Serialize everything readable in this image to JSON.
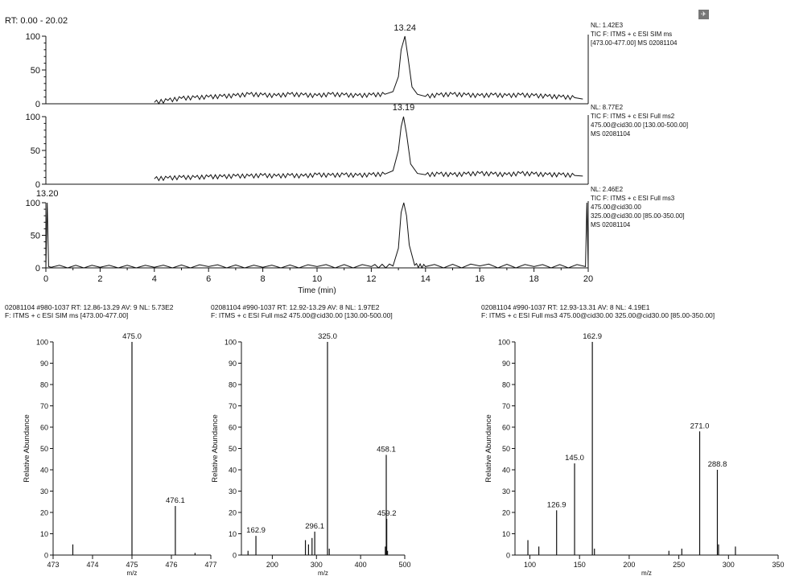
{
  "header": {
    "rt_range": "RT: 0.00 - 20.02"
  },
  "icon_name": "chromatogram-flag-icon",
  "chart_data": [
    {
      "type": "line",
      "panel": "chromatogram-1",
      "peak_label": "13.24",
      "info": [
        "NL: 1.42E3",
        "TIC F: ITMS + c ESI SIM ms",
        "[473.00-477.00]  MS 02081104"
      ],
      "x": [
        4.0,
        4.5,
        5.0,
        5.5,
        6.0,
        6.5,
        7.0,
        7.5,
        8.0,
        8.5,
        9.0,
        9.5,
        10.0,
        10.5,
        11.0,
        11.5,
        12.0,
        12.5,
        12.8,
        13.0,
        13.1,
        13.24,
        13.35,
        13.5,
        13.7,
        14.0,
        14.5,
        15.0,
        15.5,
        16.0,
        16.5,
        17.0,
        17.5,
        18.0,
        18.5,
        19.0,
        19.5,
        19.8
      ],
      "y": [
        2,
        5,
        8,
        9,
        10,
        11,
        12,
        14,
        13,
        12,
        14,
        13,
        12,
        14,
        13,
        12,
        13,
        14,
        18,
        40,
        80,
        100,
        70,
        25,
        14,
        11,
        13,
        14,
        13,
        12,
        13,
        12,
        13,
        12,
        11,
        10,
        9,
        7
      ],
      "xlim": [
        0,
        20
      ],
      "ylim": [
        0,
        100
      ],
      "yticks": [
        0,
        50,
        100
      ],
      "show_x_ticks": false
    },
    {
      "type": "line",
      "panel": "chromatogram-2",
      "peak_label": "13.19",
      "info": [
        "NL: 8.77E2",
        "TIC F: ITMS + c ESI Full ms2",
        "475.00@cid30.00 [130.00-500.00]",
        "MS 02081104"
      ],
      "x": [
        4.0,
        4.5,
        5.0,
        5.5,
        6.0,
        6.5,
        7.0,
        7.5,
        8.0,
        8.5,
        9.0,
        9.5,
        10.0,
        10.5,
        11.0,
        11.5,
        12.0,
        12.5,
        12.8,
        13.0,
        13.1,
        13.19,
        13.3,
        13.45,
        13.7,
        14.0,
        14.5,
        15.0,
        15.5,
        16.0,
        16.5,
        17.0,
        17.5,
        18.0,
        18.5,
        19.0,
        19.5,
        19.8
      ],
      "y": [
        8,
        9,
        10,
        10,
        11,
        11,
        12,
        12,
        13,
        12,
        13,
        12,
        14,
        13,
        14,
        13,
        14,
        15,
        20,
        50,
        85,
        100,
        75,
        30,
        16,
        14,
        15,
        14,
        15,
        16,
        15,
        14,
        16,
        15,
        14,
        14,
        13,
        12
      ],
      "xlim": [
        0,
        20
      ],
      "ylim": [
        0,
        100
      ],
      "yticks": [
        0,
        50,
        100
      ],
      "show_x_ticks": false
    },
    {
      "type": "line",
      "panel": "chromatogram-3",
      "peak_label": "13.20",
      "info": [
        "NL: 2.46E2",
        "TIC F: ITMS + c ESI Full ms3",
        "475.00@cid30.00",
        "325.00@cid30.00 [85.00-350.00]",
        "MS 02081104"
      ],
      "x": [
        0.0,
        0.05,
        0.1,
        0.2,
        2.0,
        4.0,
        6.0,
        8.0,
        10.0,
        12.0,
        12.8,
        13.0,
        13.1,
        13.2,
        13.3,
        13.4,
        13.6,
        14.0,
        16.0,
        18.0,
        19.9,
        19.95,
        20.0
      ],
      "y": [
        0,
        100,
        2,
        1,
        1,
        1,
        2,
        1,
        2,
        2,
        3,
        30,
        85,
        100,
        80,
        35,
        4,
        2,
        3,
        2,
        2,
        100,
        0
      ],
      "xlim": [
        0,
        20
      ],
      "ylim": [
        0,
        100
      ],
      "yticks": [
        0,
        50,
        100
      ],
      "xticks": [
        0,
        2,
        4,
        6,
        8,
        10,
        12,
        14,
        16,
        18,
        20
      ],
      "xlabel": "Time (min)",
      "show_x_ticks": true
    },
    {
      "type": "bar",
      "panel": "spectrum-1",
      "header": [
        "02081104 #980-1037   RT: 12.86-13.29   AV: 9   NL: 5.73E2",
        "F: ITMS + c ESI SIM ms [473.00-477.00]"
      ],
      "xlabel": "m/z",
      "ylabel": "Relative Abundance",
      "xlim": [
        473,
        477
      ],
      "ylim": [
        0,
        100
      ],
      "xticks": [
        473,
        474,
        475,
        476,
        477
      ],
      "yticks": [
        0,
        10,
        20,
        30,
        40,
        50,
        60,
        70,
        80,
        90,
        100
      ],
      "x": [
        473.5,
        475.0,
        476.1,
        476.6
      ],
      "values": [
        5,
        100,
        23,
        1
      ],
      "labels": [
        "",
        "475.0",
        "476.1",
        ""
      ]
    },
    {
      "type": "bar",
      "panel": "spectrum-2",
      "header": [
        "02081104 #990-1037   RT: 12.92-13.29   AV: 8   NL: 1.97E2",
        "F: ITMS + c ESI Full ms2 475.00@cid30.00 [130.00-500.00]"
      ],
      "xlabel": "m/z",
      "ylabel": "Relative Abundance",
      "xlim": [
        130,
        500
      ],
      "ylim": [
        0,
        100
      ],
      "xticks": [
        200,
        300,
        400,
        500
      ],
      "yticks": [
        0,
        10,
        20,
        30,
        40,
        50,
        60,
        70,
        80,
        90,
        100
      ],
      "x": [
        145,
        162.9,
        275,
        282,
        290,
        296.1,
        325.0,
        329,
        456,
        458.1,
        459.2,
        461
      ],
      "values": [
        2,
        9,
        7,
        5,
        8,
        11,
        100,
        3,
        4,
        47,
        17,
        2
      ],
      "labels": [
        "",
        "162.9",
        "",
        "",
        "",
        "296.1",
        "325.0",
        "",
        "",
        "458.1",
        "459.2",
        ""
      ]
    },
    {
      "type": "bar",
      "panel": "spectrum-3",
      "header": [
        "02081104 #990-1037   RT: 12.93-13.31   AV: 8   NL: 4.19E1",
        "F: ITMS + c ESI Full ms3 475.00@cid30.00 325.00@cid30.00 [85.00-350.00]"
      ],
      "xlabel": "m/z",
      "ylabel": "Relative Abundance",
      "xlim": [
        85,
        350
      ],
      "ylim": [
        0,
        100
      ],
      "xticks": [
        100,
        150,
        200,
        250,
        300,
        350
      ],
      "yticks": [
        0,
        10,
        20,
        30,
        40,
        50,
        60,
        70,
        80,
        90,
        100
      ],
      "x": [
        98,
        109,
        126.9,
        145.0,
        162.9,
        165,
        240,
        253,
        271.0,
        288.8,
        290,
        307
      ],
      "values": [
        7,
        4,
        21,
        43,
        100,
        3,
        2,
        3,
        58,
        40,
        5,
        4
      ],
      "labels": [
        "",
        "",
        "126.9",
        "145.0",
        "162.9",
        "",
        "",
        "",
        "271.0",
        "288.8",
        "",
        ""
      ]
    }
  ]
}
